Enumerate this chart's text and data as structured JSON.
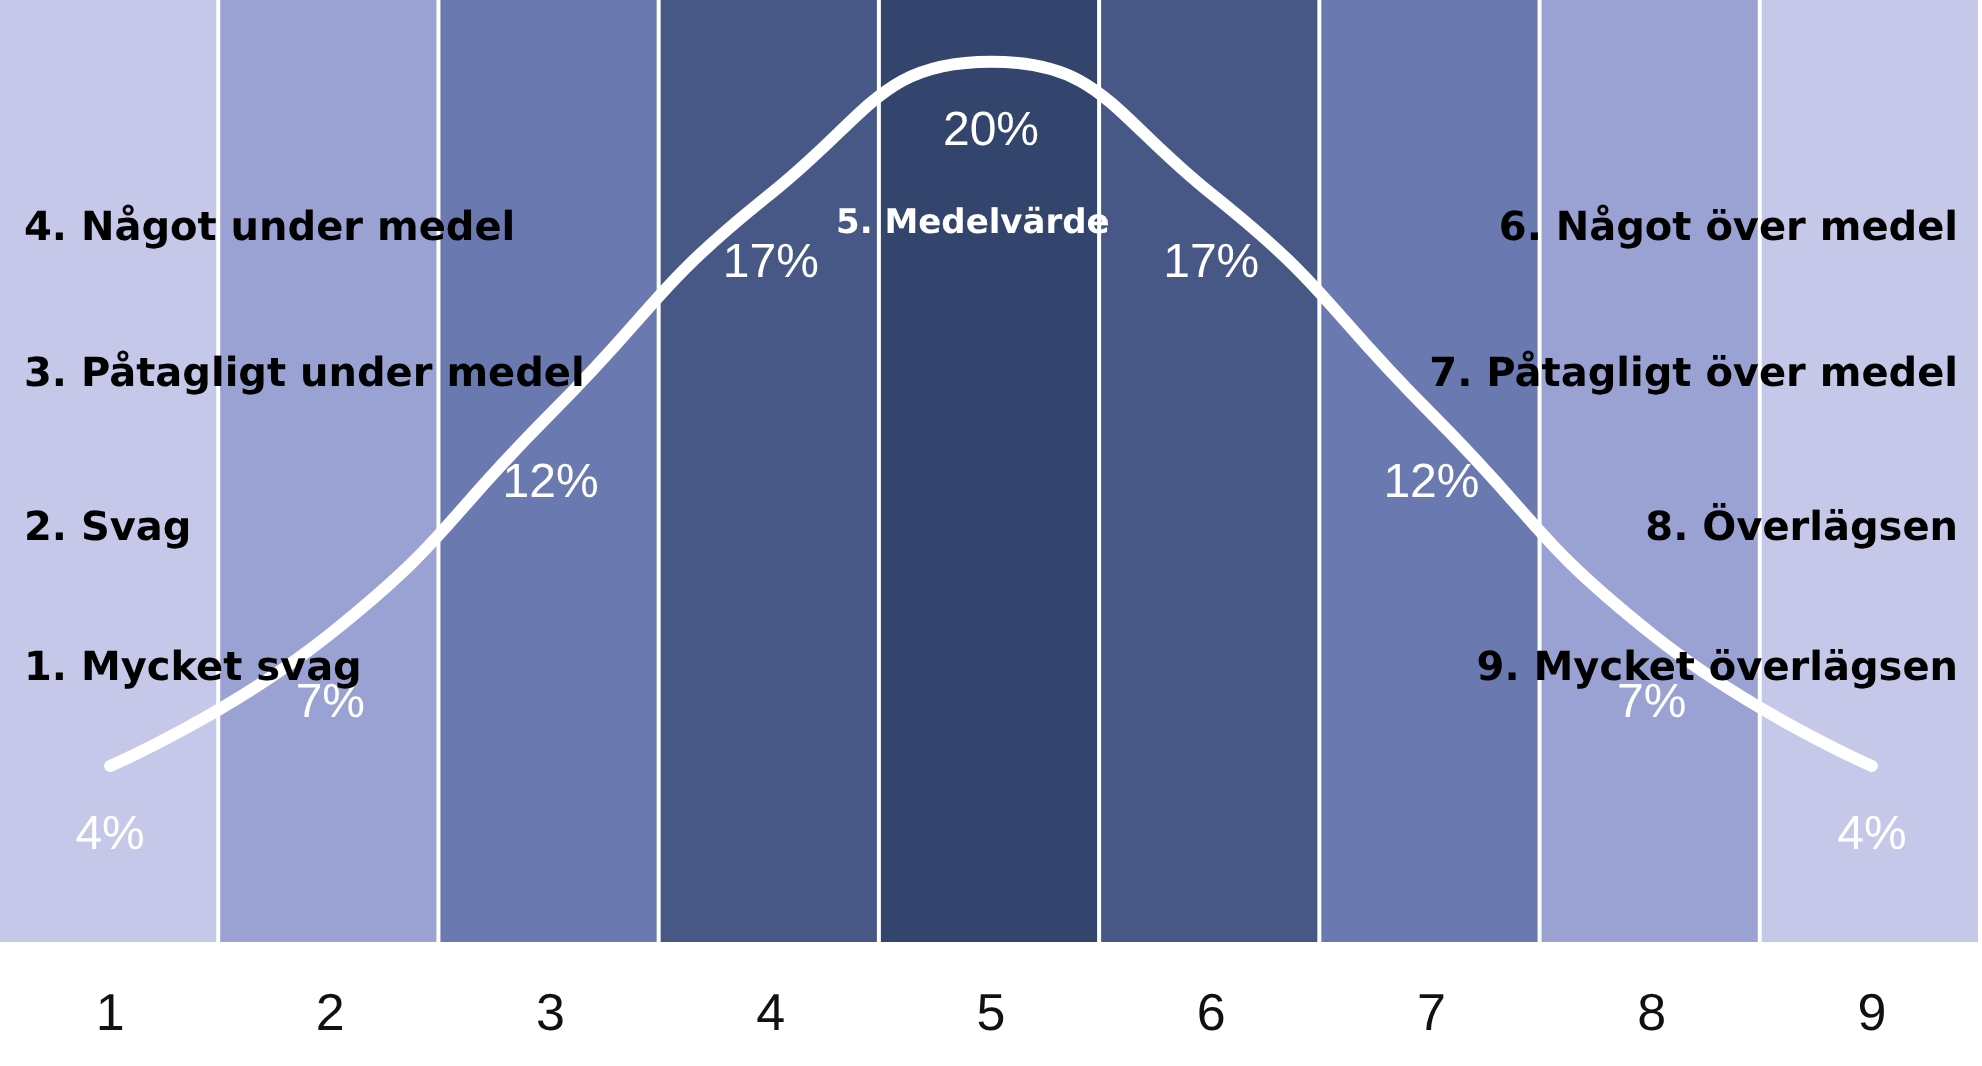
{
  "chart_data": {
    "type": "line",
    "categories": [
      "1",
      "2",
      "3",
      "4",
      "5",
      "6",
      "7",
      "8",
      "9"
    ],
    "series": [
      {
        "color": "#ffffff",
        "values": [
          4,
          7,
          12,
          17,
          20,
          17,
          12,
          7,
          4
        ],
        "value_labels": [
          "4%",
          "7%",
          "12%",
          "17%",
          "20%",
          "17%",
          "12%",
          "7%",
          "4%"
        ]
      }
    ],
    "bands": [
      {
        "axis": "x",
        "from": "1",
        "to": "1",
        "color": "#c5c8e8"
      },
      {
        "axis": "x",
        "from": "2",
        "to": "2",
        "color": "#9aa2d3"
      },
      {
        "axis": "x",
        "from": "3",
        "to": "3",
        "color": "#6b79b1"
      },
      {
        "axis": "x",
        "from": "4",
        "to": "4",
        "color": "#475886"
      },
      {
        "axis": "x",
        "from": "5",
        "to": "5",
        "color": "#33446d"
      },
      {
        "axis": "x",
        "from": "6",
        "to": "6",
        "color": "#475886"
      },
      {
        "axis": "x",
        "from": "7",
        "to": "7",
        "color": "#6b79b1"
      },
      {
        "axis": "x",
        "from": "8",
        "to": "8",
        "color": "#9aa2d3"
      },
      {
        "axis": "x",
        "from": "9",
        "to": "9",
        "color": "#c5c8e8"
      }
    ],
    "marker": "none",
    "line_style": "solid",
    "grid": false,
    "annotations": [
      "4. Något under medel",
      "3. Påtagligt under medel",
      "2. Svag",
      "1. Mycket svag",
      "5. Medelvärde",
      "6. Något över medel",
      "7. Påtagligt över medel",
      "8. Överlägsen",
      "9. Mycket överlägsen"
    ]
  }
}
